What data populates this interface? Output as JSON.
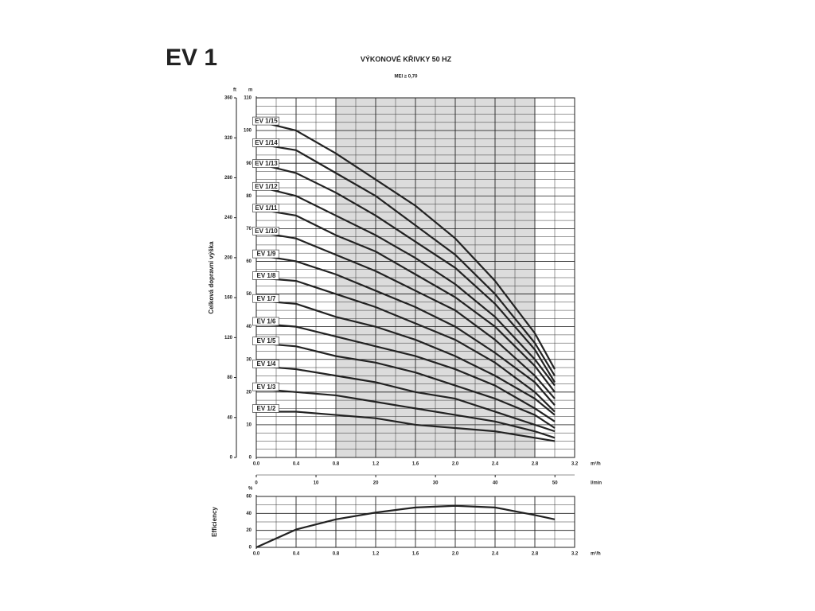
{
  "title": "EV 1",
  "chart_data": [
    {
      "type": "line",
      "title": "VÝKONOVÉ KŘIVKY 50 HZ",
      "subtitle": "MEI ≥ 0,70",
      "axis_title": "Celková dopravní výška",
      "x": [
        0,
        0.4,
        0.8,
        1.2,
        1.6,
        2.0,
        2.4,
        2.8,
        3.0
      ],
      "xlim": [
        0,
        3.2
      ],
      "xticks": [
        {
          "value": 0,
          "label": "0.0"
        },
        0.4,
        0.8,
        1.2,
        1.6,
        {
          "value": 2,
          "label": "2.0"
        },
        2.4,
        2.8,
        3.2
      ],
      "xlabel": "m³/h",
      "x2lim": [
        0,
        53.3
      ],
      "x2ticks": [
        0,
        10,
        20,
        30,
        40,
        50
      ],
      "x2label": "l/min",
      "ylim": [
        0,
        110
      ],
      "yticks": [
        0,
        10,
        20,
        30,
        40,
        50,
        60,
        70,
        80,
        90,
        100,
        110
      ],
      "ylabel": "m",
      "y2lim": [
        0,
        360
      ],
      "y2ticks": [
        0,
        40,
        80,
        120,
        160,
        200,
        240,
        280,
        320,
        360
      ],
      "y2label": "ft",
      "shaded_x": [
        0.8,
        2.8
      ],
      "grid": true,
      "series": [
        {
          "name": "EV 1/15",
          "color": "#222222",
          "values": [
            103,
            100,
            93,
            85,
            77,
            67,
            54,
            38,
            27
          ]
        },
        {
          "name": "EV 1/14",
          "color": "#222222",
          "values": [
            96,
            94,
            87,
            80,
            71,
            62,
            50,
            35,
            25
          ]
        },
        {
          "name": "EV 1/13",
          "color": "#222222",
          "values": [
            90,
            87,
            81,
            74,
            66,
            58,
            47,
            33,
            23
          ]
        },
        {
          "name": "EV 1/12",
          "color": "#222222",
          "values": [
            83,
            80,
            74,
            68,
            61,
            53,
            43,
            30,
            22
          ]
        },
        {
          "name": "EV 1/11",
          "color": "#222222",
          "values": [
            76,
            74,
            68,
            63,
            56,
            49,
            40,
            28,
            20
          ]
        },
        {
          "name": "EV 1/10",
          "color": "#222222",
          "values": [
            69,
            67,
            62,
            57,
            51,
            45,
            36,
            25,
            18
          ]
        },
        {
          "name": "EV 1/9",
          "color": "#222222",
          "values": [
            62,
            60,
            56,
            51,
            46,
            40,
            32,
            23,
            16
          ]
        },
        {
          "name": "EV 1/8",
          "color": "#222222",
          "values": [
            55,
            54,
            50,
            46,
            41,
            36,
            29,
            20,
            14
          ]
        },
        {
          "name": "EV 1/7",
          "color": "#222222",
          "values": [
            48,
            47,
            43,
            40,
            36,
            31,
            25,
            18,
            13
          ]
        },
        {
          "name": "EV 1/6",
          "color": "#222222",
          "values": [
            41,
            40,
            37,
            34,
            31,
            27,
            22,
            15,
            11
          ]
        },
        {
          "name": "EV 1/5",
          "color": "#222222",
          "values": [
            35,
            34,
            31,
            29,
            26,
            22,
            18,
            13,
            9
          ]
        },
        {
          "name": "EV 1/4",
          "color": "#222222",
          "values": [
            28,
            27,
            25,
            23,
            20,
            18,
            14,
            10,
            8
          ]
        },
        {
          "name": "EV 1/3",
          "color": "#222222",
          "values": [
            21,
            20,
            19,
            17,
            15,
            13,
            11,
            8,
            6
          ]
        },
        {
          "name": "EV 1/2",
          "color": "#222222",
          "values": [
            14,
            14,
            13,
            12,
            10,
            9,
            8,
            6,
            5
          ]
        }
      ]
    },
    {
      "type": "line",
      "axis_title": "Efficiency",
      "x": [
        0,
        0.4,
        0.8,
        1.2,
        1.6,
        2.0,
        2.4,
        2.8,
        3.0
      ],
      "xlim": [
        0,
        3.2
      ],
      "xticks": [
        {
          "value": 0,
          "label": "0.0"
        },
        0.4,
        0.8,
        1.2,
        1.6,
        {
          "value": 2,
          "label": "2.0"
        },
        2.4,
        2.8,
        3.2
      ],
      "xlabel": "m³/h",
      "ylim": [
        0,
        60
      ],
      "yticks": [
        0,
        20,
        40,
        60
      ],
      "ylabel": "%",
      "grid": true,
      "series": [
        {
          "color": "#222222",
          "values": [
            0,
            21,
            33,
            41,
            47,
            49,
            47,
            38,
            33
          ]
        }
      ]
    }
  ]
}
